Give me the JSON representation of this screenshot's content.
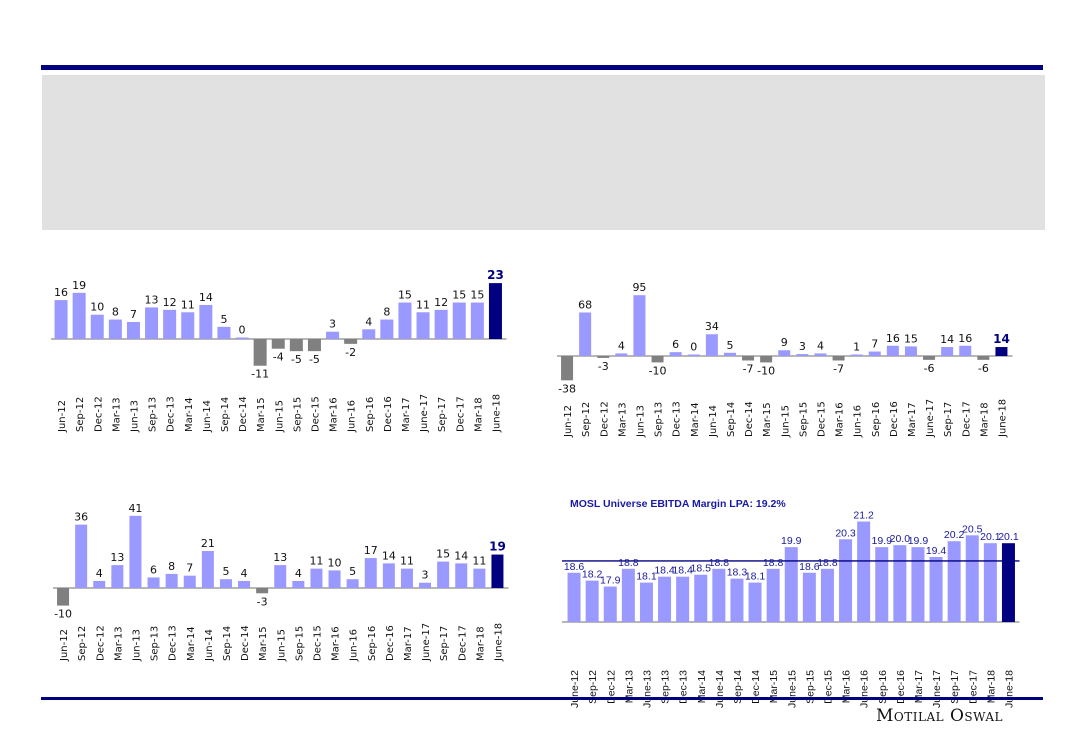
{
  "colors": {
    "positive": "#9999ff",
    "negative": "#808080",
    "highlight": "#000080",
    "axis": "#8c8c8c",
    "lpa_line": "#000080",
    "rule": "#000080",
    "panel": "#e1e1e1"
  },
  "footer": {
    "logo_text": "Motilal Oswal"
  },
  "chart_data": [
    {
      "type": "bar",
      "categories": [
        "Jun-12",
        "Sep-12",
        "Dec-12",
        "Mar-13",
        "Jun-13",
        "Sep-13",
        "Dec-13",
        "Mar-14",
        "Jun-14",
        "Sep-14",
        "Dec-14",
        "Mar-15",
        "Jun-15",
        "Sep-15",
        "Dec-15",
        "Mar-16",
        "Jun-16",
        "Sep-16",
        "Dec-16",
        "Mar-17",
        "June-17",
        "Sep-17",
        "Dec-17",
        "Mar-18",
        "June-18"
      ],
      "values": [
        16,
        19,
        10,
        8,
        7,
        13,
        12,
        11,
        14,
        5,
        0,
        -11,
        -4,
        -5,
        -5,
        3,
        -2,
        4,
        8,
        15,
        11,
        12,
        15,
        15,
        23
      ],
      "title": "",
      "xlabel": "",
      "ylabel": "",
      "ylim": [
        -11,
        23
      ],
      "grid": false
    },
    {
      "type": "bar",
      "categories": [
        "Jun-12",
        "Sep-12",
        "Dec-12",
        "Mar-13",
        "Jun-13",
        "Sep-13",
        "Dec-13",
        "Mar-14",
        "Jun-14",
        "Sep-14",
        "Dec-14",
        "Mar-15",
        "Jun-15",
        "Sep-15",
        "Dec-15",
        "Mar-16",
        "Jun-16",
        "Sep-16",
        "Dec-16",
        "Mar-17",
        "June-17",
        "Sep-17",
        "Dec-17",
        "Mar-18",
        "June-18"
      ],
      "values": [
        -38,
        68,
        -3,
        4,
        95,
        -10,
        6,
        0,
        34,
        5,
        -7,
        -10,
        9,
        3,
        4,
        -7,
        1,
        7,
        16,
        15,
        -6,
        14,
        16,
        -6,
        14
      ],
      "title": "",
      "xlabel": "",
      "ylabel": "",
      "ylim": [
        -38,
        95
      ],
      "grid": false
    },
    {
      "type": "bar",
      "categories": [
        "Jun-12",
        "Sep-12",
        "Dec-12",
        "Mar-13",
        "Jun-13",
        "Sep-13",
        "Dec-13",
        "Mar-14",
        "Jun-14",
        "Sep-14",
        "Dec-14",
        "Mar-15",
        "Jun-15",
        "Sep-15",
        "Dec-15",
        "Mar-16",
        "Jun-16",
        "Sep-16",
        "Dec-16",
        "Mar-17",
        "June-17",
        "Sep-17",
        "Dec-17",
        "Mar-18",
        "June-18"
      ],
      "values": [
        -10,
        36,
        4,
        13,
        41,
        6,
        8,
        7,
        21,
        5,
        4,
        -3,
        13,
        4,
        11,
        10,
        5,
        17,
        14,
        11,
        3,
        15,
        14,
        11,
        19
      ],
      "title": "",
      "xlabel": "",
      "ylabel": "",
      "ylim": [
        -10,
        41
      ],
      "grid": false
    },
    {
      "type": "bar",
      "categories": [
        "June-12",
        "Sep-12",
        "Dec-12",
        "Mar-13",
        "June-13",
        "Sep-13",
        "Dec-13",
        "Mar-14",
        "June-14",
        "Sep-14",
        "Dec-14",
        "Mar-15",
        "June-15",
        "Sep-15",
        "Dec-15",
        "Mar-16",
        "June-16",
        "Sep-16",
        "Dec-16",
        "Mar-17",
        "June-17",
        "Sep-17",
        "Dec-17",
        "Mar-18",
        "June-18"
      ],
      "values": [
        18.6,
        18.2,
        17.9,
        18.8,
        18.1,
        18.4,
        18.4,
        18.5,
        18.8,
        18.3,
        18.1,
        18.8,
        19.9,
        18.6,
        18.8,
        20.3,
        21.2,
        19.9,
        20.0,
        19.9,
        19.4,
        20.2,
        20.5,
        20.1,
        20.1
      ],
      "value_labels": [
        "18.6",
        "18.2",
        "17.9",
        "18.8",
        "18.1",
        "18.4",
        "18.4",
        "18.5",
        "18.8",
        "18.3",
        "18.1",
        "18.8",
        "19.9",
        "18.6",
        "18.8",
        "20.3",
        "21.2",
        "19.9",
        "20.0",
        "19.9",
        "19.4",
        "20.2",
        "20.5",
        "20.1",
        "20.1"
      ],
      "title": "MOSL Universe EBITDA Margin  LPA: 19.2%",
      "reference_line": {
        "label": "LPA",
        "value": 19.2
      },
      "xlabel": "",
      "ylabel": "",
      "ylim": [
        16.1,
        21.2
      ],
      "grid": false
    }
  ]
}
